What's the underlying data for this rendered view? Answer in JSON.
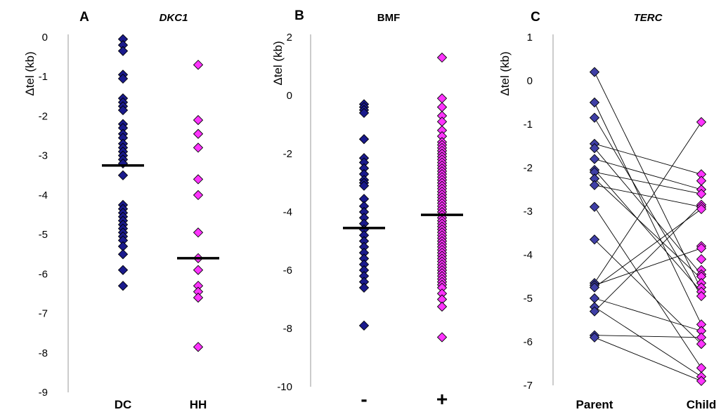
{
  "colors": {
    "navy": "#1a1a8c",
    "magenta": "#ff33ff",
    "navy_light": "#3f3fa6",
    "mean_bar": "#000000",
    "link_line": "#000000"
  },
  "chart_data": [
    {
      "panel_label": "A",
      "title": "DKC1",
      "title_italic": true,
      "type": "scatter",
      "ylabel": "Δtel (kb)",
      "ylim": [
        -9,
        0
      ],
      "yticks": [
        "0",
        "-1",
        "-2",
        "-3",
        "-4",
        "-5",
        "-6",
        "-7",
        "-8",
        "-9"
      ],
      "categories": [
        "DC",
        "HH"
      ],
      "series": [
        {
          "category": "DC",
          "color": "navy",
          "mean": -3.25,
          "values": [
            -0.05,
            -0.2,
            -0.35,
            -0.95,
            -1.05,
            -1.55,
            -1.65,
            -1.75,
            -1.85,
            -2.2,
            -2.3,
            -2.45,
            -2.55,
            -2.7,
            -2.8,
            -2.9,
            -3.0,
            -3.1,
            -3.2,
            -3.5,
            -4.25,
            -4.35,
            -4.45,
            -4.55,
            -4.65,
            -4.75,
            -4.85,
            -4.95,
            -5.05,
            -5.15,
            -5.3,
            -5.5,
            -5.9,
            -6.3
          ]
        },
        {
          "category": "HH",
          "color": "magenta",
          "mean": -5.6,
          "values": [
            -0.7,
            -2.1,
            -2.45,
            -2.8,
            -3.6,
            -4.0,
            -4.95,
            -5.6,
            -5.9,
            -6.3,
            -6.45,
            -6.6,
            -7.85
          ]
        }
      ]
    },
    {
      "panel_label": "B",
      "title": "BMF",
      "title_italic": false,
      "type": "scatter",
      "ylabel": "Δtel (kb)",
      "ylim": [
        -10,
        2
      ],
      "yticks": [
        "2",
        "0",
        "-2",
        "-4",
        "-6",
        "-8",
        "-10"
      ],
      "categories": [
        "-",
        "+"
      ],
      "series": [
        {
          "category": "-",
          "color": "navy",
          "mean": -4.55,
          "values": [
            -0.3,
            -0.4,
            -0.5,
            -0.6,
            -1.5,
            -2.15,
            -2.3,
            -2.5,
            -2.7,
            -2.9,
            -3.0,
            -3.1,
            -3.55,
            -3.8,
            -4.0,
            -4.2,
            -4.4,
            -4.6,
            -4.8,
            -5.0,
            -5.2,
            -5.4,
            -5.6,
            -5.8,
            -6.0,
            -6.2,
            -6.4,
            -6.6,
            -7.9
          ]
        },
        {
          "category": "+",
          "color": "magenta",
          "mean": -4.1,
          "values": [
            1.3,
            -0.1,
            -0.4,
            -0.7,
            -0.9,
            -1.2,
            -1.4,
            -1.6,
            -1.7,
            -1.8,
            -1.9,
            -2.0,
            -2.1,
            -2.2,
            -2.3,
            -2.4,
            -2.5,
            -2.6,
            -2.7,
            -2.8,
            -2.9,
            -3.0,
            -3.1,
            -3.2,
            -3.3,
            -3.4,
            -3.5,
            -3.6,
            -3.7,
            -3.8,
            -3.9,
            -4.0,
            -4.1,
            -4.2,
            -4.3,
            -4.4,
            -4.5,
            -4.6,
            -4.7,
            -4.8,
            -4.9,
            -5.0,
            -5.1,
            -5.2,
            -5.3,
            -5.4,
            -5.5,
            -5.6,
            -5.7,
            -5.8,
            -5.9,
            -6.0,
            -6.1,
            -6.2,
            -6.3,
            -6.4,
            -6.5,
            -6.6,
            -6.8,
            -7.0,
            -7.25,
            -8.3
          ]
        }
      ]
    },
    {
      "panel_label": "C",
      "title": "TERC",
      "title_italic": true,
      "type": "paired-scatter",
      "ylabel": "Δtel (kb)",
      "ylim": [
        -7,
        1
      ],
      "yticks": [
        "1",
        "0",
        "-1",
        "-2",
        "-3",
        "-4",
        "-5",
        "-6",
        "-7"
      ],
      "categories": [
        "Parent",
        "Child"
      ],
      "parent": [
        0.2,
        -0.5,
        -0.85,
        -1.45,
        -1.55,
        -1.8,
        -2.05,
        -2.1,
        -2.25,
        -2.4,
        -2.9,
        -3.65,
        -4.65,
        -4.7,
        -4.75,
        -5.0,
        -5.2,
        -5.3,
        -5.85,
        -5.9
      ],
      "child": [
        -0.95,
        -2.15,
        -2.3,
        -2.5,
        -2.6,
        -2.85,
        -2.9,
        -2.95,
        -3.8,
        -3.85,
        -4.1,
        -4.35,
        -4.45,
        -4.5,
        -4.65,
        -4.75,
        -4.85,
        -4.95,
        -5.6,
        -5.75,
        -5.9,
        -6.05,
        -6.6,
        -6.8,
        -6.9
      ],
      "pairs": [
        [
          0.2,
          -4.8
        ],
        [
          -0.5,
          -5.6
        ],
        [
          -0.85,
          -4.95
        ],
        [
          -1.45,
          -2.15
        ],
        [
          -1.55,
          -4.45
        ],
        [
          -1.8,
          -2.5
        ],
        [
          -2.05,
          -4.85
        ],
        [
          -2.1,
          -2.6
        ],
        [
          -2.25,
          -4.55
        ],
        [
          -2.4,
          -2.9
        ],
        [
          -2.9,
          -6.6
        ],
        [
          -3.65,
          -6.05
        ],
        [
          -4.65,
          -0.95
        ],
        [
          -4.7,
          -3.85
        ],
        [
          -4.75,
          -2.95
        ],
        [
          -5.0,
          -5.75
        ],
        [
          -5.2,
          -6.8
        ],
        [
          -5.3,
          -2.85
        ],
        [
          -5.85,
          -5.9
        ],
        [
          -5.9,
          -6.9
        ]
      ]
    }
  ]
}
